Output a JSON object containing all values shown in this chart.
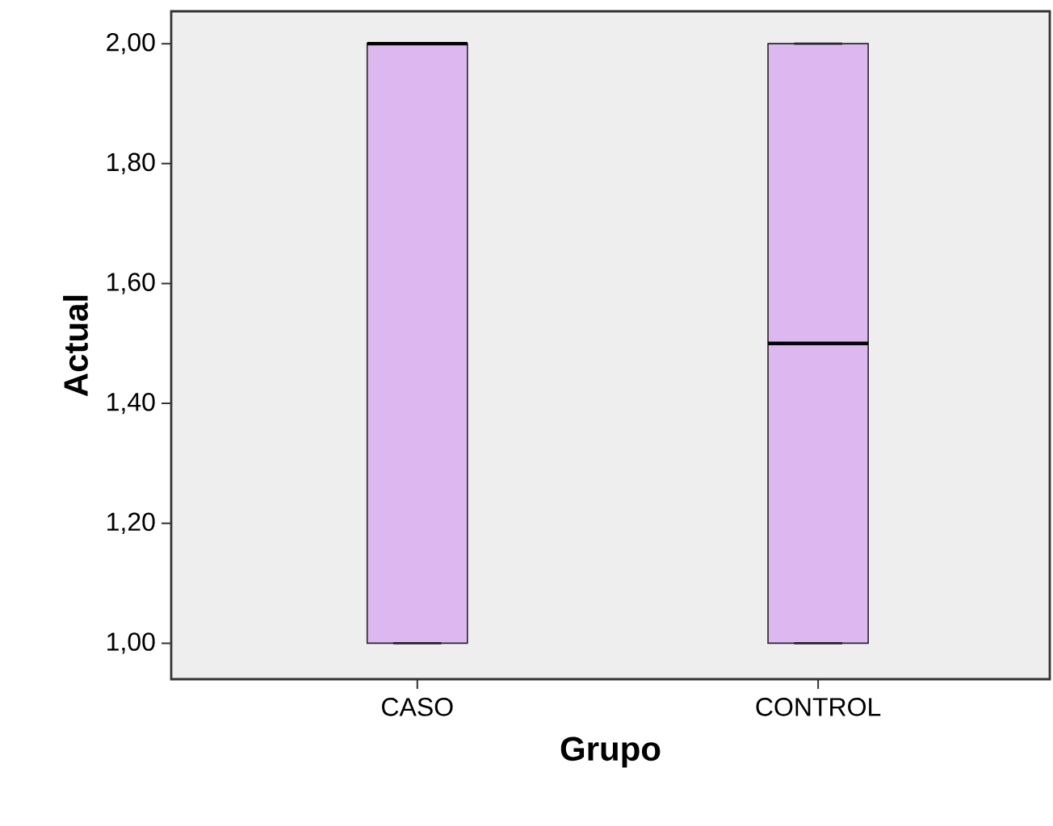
{
  "chart_data": {
    "type": "box",
    "xlabel": "Grupo",
    "ylabel": "Actual",
    "categories": [
      "CASO",
      "CONTROL"
    ],
    "series": [
      {
        "color": "#ddb8f0",
        "boxes": [
          {
            "low": 1,
            "q1": 1,
            "median": 2,
            "q3": 2,
            "high": 2
          },
          {
            "low": 1,
            "q1": 1,
            "median": 1.5,
            "q3": 2,
            "high": 2
          }
        ]
      }
    ],
    "ylim": [
      0.94,
      2.054
    ],
    "yticks": [
      {
        "value": 1,
        "label": "1,00"
      },
      {
        "value": 1.2,
        "label": "1,20"
      },
      {
        "value": 1.4,
        "label": "1,40"
      },
      {
        "value": 1.6,
        "label": "1,60"
      },
      {
        "value": 1.8,
        "label": "1,80"
      },
      {
        "value": 2,
        "label": "2,00"
      }
    ],
    "grid": false
  }
}
